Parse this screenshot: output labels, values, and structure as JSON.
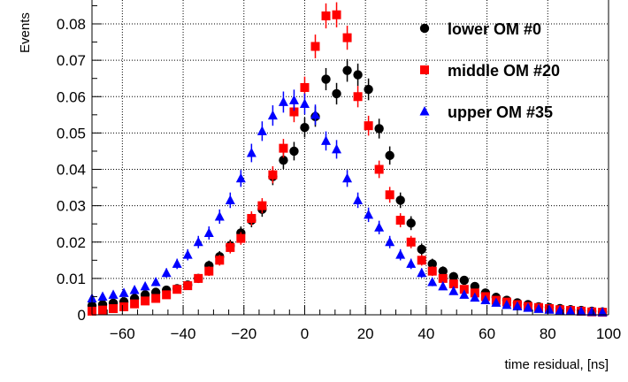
{
  "chart_data": {
    "type": "scatter",
    "xlabel": "time residual, [ns]",
    "ylabel": "Events",
    "xlim": [
      -70,
      100
    ],
    "ylim": [
      0,
      0.089
    ],
    "x_ticks": [
      -60,
      -40,
      -20,
      0,
      20,
      40,
      60,
      80,
      100
    ],
    "x_tick_labels": [
      "−60",
      "−40",
      "−20",
      "0",
      "20",
      "40",
      "60",
      "80",
      "100"
    ],
    "y_ticks": [
      0,
      0.01,
      0.02,
      0.03,
      0.04,
      0.05,
      0.06,
      0.07,
      0.08
    ],
    "y_tick_labels": [
      "0",
      "0.01",
      "0.02",
      "0.03",
      "0.04",
      "0.05",
      "0.06",
      "0.07",
      "0.08"
    ],
    "grid": true,
    "legend_position": "top-right",
    "series": [
      {
        "name": "lower OM #0",
        "marker": "circle",
        "color": "#000000",
        "x": [
          -70,
          -66.5,
          -63,
          -59.5,
          -56,
          -52.5,
          -49,
          -45.5,
          -42,
          -38.5,
          -35,
          -31.5,
          -28,
          -24.5,
          -21,
          -17.5,
          -14,
          -10.5,
          -7,
          -3.5,
          0,
          3.5,
          7,
          10.5,
          14,
          17.5,
          21,
          24.5,
          28,
          31.5,
          35,
          38.5,
          42,
          45.5,
          49,
          52.5,
          56,
          59.5,
          63,
          66.5,
          70,
          73.5,
          77,
          80.5,
          84,
          87.5,
          91,
          94.5,
          98
        ],
        "y": [
          0.0025,
          0.0028,
          0.0032,
          0.0036,
          0.0045,
          0.0055,
          0.0062,
          0.0068,
          0.0072,
          0.0082,
          0.01,
          0.0135,
          0.016,
          0.019,
          0.0225,
          0.026,
          0.029,
          0.038,
          0.0425,
          0.045,
          0.0515,
          0.0545,
          0.0648,
          0.0608,
          0.0672,
          0.066,
          0.062,
          0.0512,
          0.0438,
          0.0315,
          0.0252,
          0.018,
          0.014,
          0.012,
          0.0105,
          0.0095,
          0.0078,
          0.006,
          0.0048,
          0.004,
          0.0033,
          0.0028,
          0.0022,
          0.002,
          0.0017,
          0.0014,
          0.0012,
          0.001,
          0.0008
        ]
      },
      {
        "name": "middle OM #20",
        "marker": "square",
        "color": "#ff0000",
        "x": [
          -70,
          -66.5,
          -63,
          -59.5,
          -56,
          -52.5,
          -49,
          -45.5,
          -42,
          -38.5,
          -35,
          -31.5,
          -28,
          -24.5,
          -21,
          -17.5,
          -14,
          -10.5,
          -7,
          -3.5,
          0,
          3.5,
          7,
          10.5,
          14,
          17.5,
          21,
          24.5,
          28,
          31.5,
          35,
          38.5,
          42,
          45.5,
          49,
          52.5,
          56,
          59.5,
          63,
          66.5,
          70,
          73.5,
          77,
          80.5,
          84,
          87.5,
          91,
          94.5,
          98
        ],
        "y": [
          0.001,
          0.0013,
          0.0017,
          0.0022,
          0.003,
          0.0038,
          0.0045,
          0.0055,
          0.007,
          0.008,
          0.01,
          0.012,
          0.015,
          0.0185,
          0.021,
          0.0265,
          0.03,
          0.0385,
          0.0458,
          0.0558,
          0.0625,
          0.0738,
          0.0822,
          0.0825,
          0.0762,
          0.06,
          0.052,
          0.04,
          0.033,
          0.026,
          0.02,
          0.015,
          0.012,
          0.01,
          0.0085,
          0.007,
          0.006,
          0.005,
          0.004,
          0.0035,
          0.0028,
          0.0023,
          0.002,
          0.0017,
          0.0014,
          0.0012,
          0.001,
          0.0008,
          0.0007
        ]
      },
      {
        "name": "upper OM #35",
        "marker": "triangle",
        "color": "#0000ff",
        "x": [
          -70,
          -66.5,
          -63,
          -59.5,
          -56,
          -52.5,
          -49,
          -45.5,
          -42,
          -38.5,
          -35,
          -31.5,
          -28,
          -24.5,
          -21,
          -17.5,
          -14,
          -10.5,
          -7,
          -3.5,
          0,
          3.5,
          7,
          10.5,
          14,
          17.5,
          21,
          24.5,
          28,
          31.5,
          35,
          38.5,
          42,
          45.5,
          49,
          52.5,
          56,
          59.5,
          63,
          66.5,
          70,
          73.5,
          77,
          80.5,
          84,
          87.5,
          91,
          94.5,
          98
        ],
        "y": [
          0.0045,
          0.005,
          0.0055,
          0.006,
          0.0068,
          0.0078,
          0.009,
          0.0115,
          0.014,
          0.0165,
          0.02,
          0.0225,
          0.027,
          0.0315,
          0.0375,
          0.0445,
          0.0505,
          0.0548,
          0.0585,
          0.059,
          0.058,
          0.055,
          0.0478,
          0.0455,
          0.0375,
          0.0315,
          0.0275,
          0.024,
          0.02,
          0.0165,
          0.014,
          0.0115,
          0.009,
          0.0078,
          0.0065,
          0.0055,
          0.0047,
          0.004,
          0.0033,
          0.0027,
          0.0023,
          0.0019,
          0.0016,
          0.0014,
          0.0012,
          0.001,
          0.0009,
          0.0008,
          0.0007
        ]
      }
    ]
  }
}
